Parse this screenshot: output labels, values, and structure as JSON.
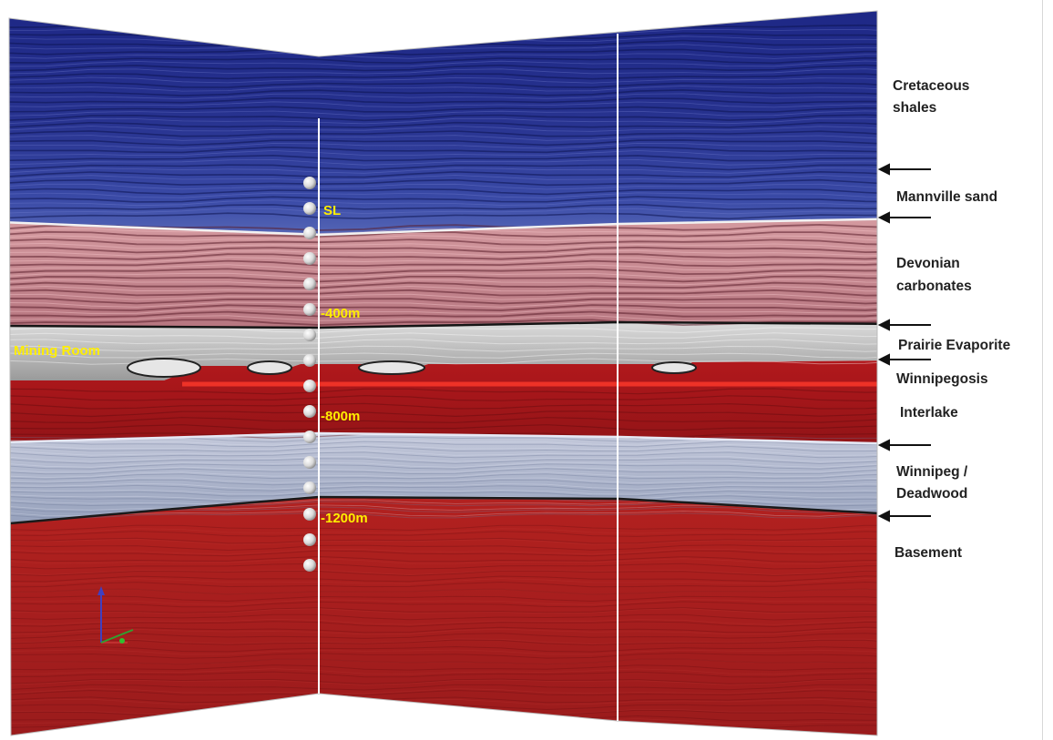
{
  "depth_labels": {
    "sl": "SL",
    "d400": "-400m",
    "d800": "-800m",
    "d1200": "-1200m"
  },
  "mining_room": "Mining Room",
  "formations": {
    "cretaceous": [
      "Cretaceous",
      "shales"
    ],
    "mannville": "Mannville sand",
    "devonian": [
      "Devonian",
      "carbonates"
    ],
    "prairie": "Prairie Evaporite",
    "winnipegosis": "Winnipegosis",
    "interlake": "Interlake",
    "winnipeg": [
      "Winnipeg /",
      "Deadwood"
    ],
    "basement": "Basement"
  },
  "colors": {
    "cretaceous": "#25308f",
    "devonian": "#c98a92",
    "evaporite": "#b8b8b8",
    "interlake": "#a8171c",
    "winnipeg": "#a9b1c8",
    "basement": "#a31b1f",
    "label_yellow": "#ffee00"
  },
  "icons": [
    "arrow-left-icon",
    "axis-triad-icon",
    "geophone-sphere-icon"
  ]
}
